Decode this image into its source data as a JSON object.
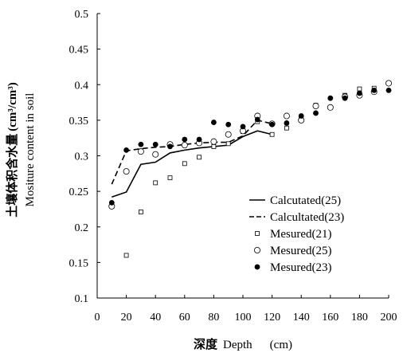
{
  "chart_data": {
    "type": "scatter",
    "xlabel_cn": "深度",
    "xlabel_en": "Depth",
    "xlabel_unit": "(cm)",
    "ylabel_cn": "土壤体积含水量",
    "ylabel_unit": "(cm³/cm³)",
    "ylabel_en": "Mositure content in soil",
    "xlim": [
      0,
      200
    ],
    "ylim": [
      0.1,
      0.5
    ],
    "xticks": [
      "0",
      "20",
      "40",
      "60",
      "80",
      "100",
      "120",
      "140",
      "160",
      "180",
      "200"
    ],
    "yticks": [
      "0.1",
      "0.15",
      "0.2",
      "0.25",
      "0.3",
      "0.35",
      "0.4",
      "0.45",
      "0.5"
    ],
    "grid": false,
    "legend_position": "lower-right",
    "series": [
      {
        "name": "Calcutated(25)",
        "style": "solid-line",
        "x": [
          10,
          20,
          30,
          40,
          50,
          60,
          70,
          80,
          90,
          100,
          110,
          120
        ],
        "y": [
          0.242,
          0.249,
          0.288,
          0.291,
          0.304,
          0.308,
          0.311,
          0.313,
          0.315,
          0.327,
          0.335,
          0.33
        ]
      },
      {
        "name": "Calcultated(23)",
        "style": "dashed-line",
        "x": [
          10,
          20,
          30,
          40,
          50,
          60,
          70,
          80,
          90,
          100,
          110,
          120
        ],
        "y": [
          0.26,
          0.307,
          0.31,
          0.312,
          0.313,
          0.316,
          0.318,
          0.319,
          0.319,
          0.328,
          0.35,
          0.345
        ]
      },
      {
        "name": "Mesured(21)",
        "style": "open-square",
        "x": [
          10,
          20,
          30,
          40,
          50,
          60,
          70,
          80,
          90,
          100,
          110,
          120,
          130,
          140,
          150,
          160,
          170,
          180,
          190
        ],
        "y": [
          0.23,
          0.16,
          0.221,
          0.262,
          0.269,
          0.289,
          0.298,
          0.313,
          0.317,
          0.334,
          0.348,
          0.33,
          0.339,
          0.352,
          0.371,
          0.368,
          0.385,
          0.394,
          0.395
        ]
      },
      {
        "name": "Mesured(25)",
        "style": "open-circle",
        "x": [
          10,
          20,
          30,
          40,
          50,
          60,
          70,
          80,
          90,
          100,
          110,
          120,
          130,
          140,
          150,
          160,
          170,
          180,
          190,
          200
        ],
        "y": [
          0.229,
          0.278,
          0.306,
          0.302,
          0.316,
          0.315,
          0.318,
          0.32,
          0.33,
          0.335,
          0.356,
          0.345,
          0.356,
          0.35,
          0.37,
          0.368,
          0.383,
          0.385,
          0.39,
          0.402
        ]
      },
      {
        "name": "Mesured(23)",
        "style": "filled-circle",
        "x": [
          10,
          20,
          30,
          40,
          50,
          60,
          70,
          80,
          90,
          100,
          110,
          120,
          130,
          140,
          150,
          160,
          170,
          180,
          190,
          200
        ],
        "y": [
          0.234,
          0.308,
          0.316,
          0.316,
          0.313,
          0.323,
          0.323,
          0.347,
          0.344,
          0.341,
          0.351,
          0.344,
          0.346,
          0.356,
          0.36,
          0.381,
          0.381,
          0.388,
          0.392,
          0.392
        ]
      }
    ]
  }
}
